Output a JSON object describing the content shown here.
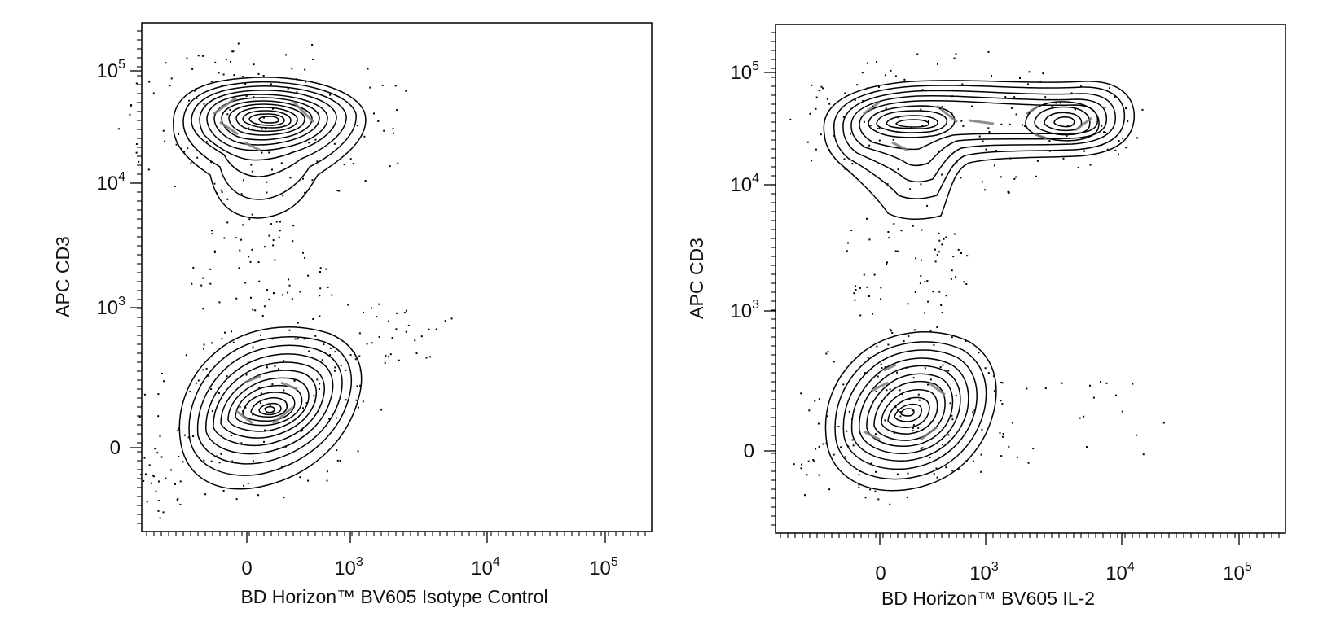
{
  "chart_data": [
    {
      "type": "contour",
      "xlabel": "BD Horizon™ BV605 Isotype Control",
      "ylabel": "APC CD3",
      "x_scale": "biexponential",
      "y_scale": "biexponential",
      "x_ticks": [
        {
          "value": 0,
          "base": "0",
          "exp": ""
        },
        {
          "value": 1000,
          "base": "10",
          "exp": "3"
        },
        {
          "value": 10000,
          "base": "10",
          "exp": "4"
        },
        {
          "value": 100000,
          "base": "10",
          "exp": "5"
        }
      ],
      "y_ticks": [
        {
          "value": 0,
          "base": "0",
          "exp": ""
        },
        {
          "value": 1000,
          "base": "10",
          "exp": "3"
        },
        {
          "value": 10000,
          "base": "10",
          "exp": "4"
        },
        {
          "value": 100000,
          "base": "10",
          "exp": "5"
        }
      ],
      "populations": [
        {
          "x": 200,
          "y": 35000,
          "count_rel": 0.55
        },
        {
          "x": 250,
          "y": 150,
          "count_rel": 0.45
        }
      ]
    },
    {
      "type": "contour",
      "xlabel": "BD Horizon™ BV605 IL-2",
      "ylabel": "APC CD3",
      "x_scale": "biexponential",
      "y_scale": "biexponential",
      "x_ticks": [
        {
          "value": 0,
          "base": "0",
          "exp": ""
        },
        {
          "value": 1000,
          "base": "10",
          "exp": "3"
        },
        {
          "value": 10000,
          "base": "10",
          "exp": "4"
        },
        {
          "value": 100000,
          "base": "10",
          "exp": "5"
        }
      ],
      "y_ticks": [
        {
          "value": 0,
          "base": "0",
          "exp": ""
        },
        {
          "value": 1000,
          "base": "10",
          "exp": "3"
        },
        {
          "value": 10000,
          "base": "10",
          "exp": "4"
        },
        {
          "value": 100000,
          "base": "10",
          "exp": "5"
        }
      ],
      "populations": [
        {
          "x": 200,
          "y": 33000,
          "count_rel": 0.35
        },
        {
          "x": 3500,
          "y": 33000,
          "count_rel": 0.2
        },
        {
          "x": 200,
          "y": 150,
          "count_rel": 0.45
        }
      ]
    }
  ]
}
